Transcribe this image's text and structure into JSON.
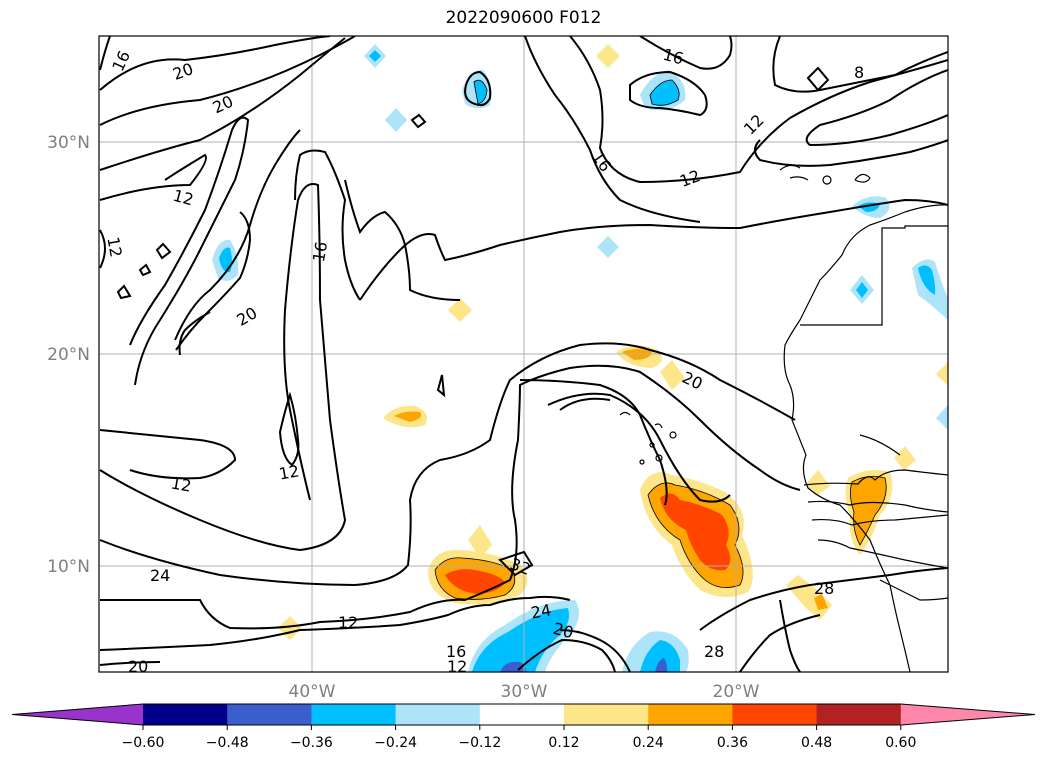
{
  "title": "2022090600 F012",
  "map": {
    "lat_labels": [
      "30°N",
      "20°N",
      "10°N"
    ],
    "lon_labels": [
      "40°W",
      "30°W",
      "20°W"
    ],
    "contour_labels": [
      "16",
      "20",
      "20",
      "12",
      "12",
      "16",
      "20",
      "12",
      "12",
      "20",
      "24",
      "16",
      "12",
      "12",
      "28",
      "20",
      "24",
      "20",
      "32",
      "16",
      "12",
      "20",
      "28",
      "28",
      "16",
      "12",
      "16",
      "8"
    ]
  },
  "colorbar": {
    "ticks": [
      "−0.60",
      "−0.48",
      "−0.36",
      "−0.24",
      "−0.12",
      "0.12",
      "0.24",
      "0.36",
      "0.48",
      "0.60"
    ],
    "colors": [
      "#9933cc",
      "#00008b",
      "#3a5fcd",
      "#00bfff",
      "#aee4fa",
      "#ffffff",
      "#fde68a",
      "#ffa500",
      "#ff4500",
      "#b22222",
      "#ff88aa"
    ]
  }
}
